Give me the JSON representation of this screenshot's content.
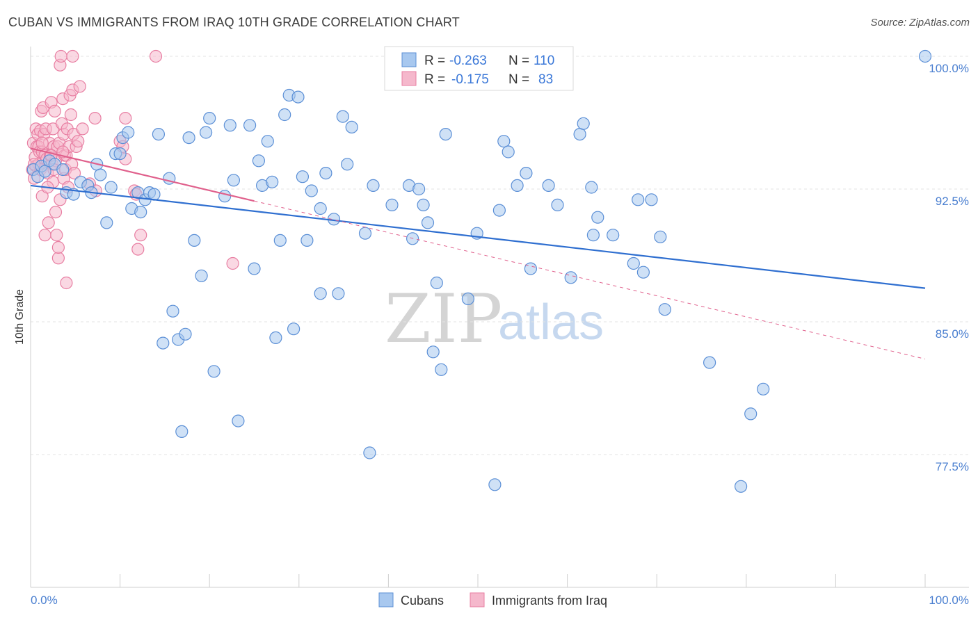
{
  "header": {
    "title": "CUBAN VS IMMIGRANTS FROM IRAQ 10TH GRADE CORRELATION CHART",
    "source": "Source: ZipAtlas.com"
  },
  "legend_top": {
    "row1": {
      "r_label": "R =",
      "r_value": "-0.263",
      "n_label": "N =",
      "n_value": "110"
    },
    "row2": {
      "r_label": "R =",
      "r_value": "-0.175",
      "n_label": "N =",
      "n_value": "83"
    }
  },
  "legend_bottom": {
    "series1": "Cubans",
    "series2": "Immigrants from Iraq"
  },
  "watermark": {
    "zip": "ZIP",
    "atlas": "atlas"
  },
  "colors": {
    "cubans_fill": "#a8c8ef",
    "cubans_stroke": "#5b8fd6",
    "cubans_line": "#2f6fd0",
    "iraq_fill": "#f5b8cc",
    "iraq_stroke": "#e87ea2",
    "iraq_line": "#e0608c",
    "tick_text": "#4a7fd0",
    "grid": "#e3e3e3"
  },
  "chart_data": {
    "type": "scatter",
    "xlabel": "",
    "ylabel": "10th Grade",
    "xlim": [
      0,
      100
    ],
    "ylim": [
      70.5,
      101.2
    ],
    "x_tick_labels": [
      "0.0%",
      "100.0%"
    ],
    "y_ticks": [
      {
        "value": 100.0,
        "label": "100.0%"
      },
      {
        "value": 92.5,
        "label": "92.5%"
      },
      {
        "value": 85.0,
        "label": "85.0%"
      },
      {
        "value": 77.5,
        "label": "77.5%"
      }
    ],
    "grid": true,
    "legend_position": "top-center",
    "series": [
      {
        "name": "Cubans",
        "R": -0.263,
        "N": 110,
        "trend": {
          "x0": 0,
          "y0": 92.7,
          "x1": 100,
          "y1": 86.9
        },
        "points": [
          [
            0.3,
            93.6
          ],
          [
            0.8,
            93.2
          ],
          [
            1.2,
            93.8
          ],
          [
            1.6,
            93.5
          ],
          [
            2.1,
            94.1
          ],
          [
            2.7,
            93.9
          ],
          [
            3.6,
            93.6
          ],
          [
            4.0,
            92.3
          ],
          [
            4.8,
            92.2
          ],
          [
            5.6,
            92.9
          ],
          [
            6.4,
            92.7
          ],
          [
            6.8,
            92.3
          ],
          [
            7.4,
            93.9
          ],
          [
            7.8,
            93.3
          ],
          [
            8.5,
            90.6
          ],
          [
            9.0,
            92.6
          ],
          [
            9.5,
            94.5
          ],
          [
            10.0,
            94.5
          ],
          [
            10.3,
            95.4
          ],
          [
            10.9,
            95.7
          ],
          [
            11.3,
            91.4
          ],
          [
            12.0,
            92.3
          ],
          [
            12.3,
            91.2
          ],
          [
            12.8,
            91.9
          ],
          [
            13.3,
            92.3
          ],
          [
            13.8,
            92.2
          ],
          [
            14.3,
            95.6
          ],
          [
            14.8,
            83.8
          ],
          [
            15.5,
            93.1
          ],
          [
            15.9,
            85.6
          ],
          [
            16.5,
            84.0
          ],
          [
            16.9,
            78.8
          ],
          [
            17.3,
            84.3
          ],
          [
            17.7,
            95.4
          ],
          [
            18.3,
            89.6
          ],
          [
            19.1,
            87.6
          ],
          [
            19.6,
            95.7
          ],
          [
            20.0,
            96.5
          ],
          [
            20.5,
            82.2
          ],
          [
            21.7,
            92.1
          ],
          [
            22.3,
            96.1
          ],
          [
            22.7,
            93.0
          ],
          [
            23.2,
            79.4
          ],
          [
            24.5,
            96.1
          ],
          [
            25.0,
            88.0
          ],
          [
            25.5,
            94.1
          ],
          [
            25.9,
            92.7
          ],
          [
            26.5,
            95.2
          ],
          [
            27.0,
            92.9
          ],
          [
            27.4,
            84.1
          ],
          [
            27.9,
            89.6
          ],
          [
            28.4,
            96.7
          ],
          [
            28.9,
            97.8
          ],
          [
            29.4,
            84.6
          ],
          [
            29.9,
            97.7
          ],
          [
            30.4,
            93.2
          ],
          [
            30.9,
            89.6
          ],
          [
            31.4,
            92.4
          ],
          [
            32.4,
            86.6
          ],
          [
            32.4,
            91.4
          ],
          [
            33.0,
            93.4
          ],
          [
            33.9,
            90.8
          ],
          [
            34.4,
            86.6
          ],
          [
            34.9,
            96.6
          ],
          [
            35.4,
            93.9
          ],
          [
            35.9,
            96.0
          ],
          [
            37.4,
            90.0
          ],
          [
            37.9,
            77.6
          ],
          [
            38.3,
            92.7
          ],
          [
            40.4,
            91.6
          ],
          [
            42.3,
            92.7
          ],
          [
            42.7,
            89.7
          ],
          [
            43.4,
            92.5
          ],
          [
            43.9,
            91.6
          ],
          [
            44.4,
            90.6
          ],
          [
            45.0,
            83.3
          ],
          [
            45.4,
            87.2
          ],
          [
            45.9,
            82.3
          ],
          [
            46.4,
            95.6
          ],
          [
            48.9,
            86.3
          ],
          [
            49.9,
            90.0
          ],
          [
            51.9,
            75.8
          ],
          [
            52.4,
            91.3
          ],
          [
            52.9,
            95.2
          ],
          [
            53.4,
            94.6
          ],
          [
            54.4,
            92.7
          ],
          [
            55.4,
            93.4
          ],
          [
            55.9,
            88.0
          ],
          [
            57.9,
            92.7
          ],
          [
            58.9,
            91.6
          ],
          [
            60.4,
            87.5
          ],
          [
            61.4,
            95.6
          ],
          [
            61.8,
            96.2
          ],
          [
            62.7,
            92.6
          ],
          [
            62.9,
            89.9
          ],
          [
            63.4,
            90.9
          ],
          [
            65.1,
            89.9
          ],
          [
            67.4,
            88.3
          ],
          [
            67.9,
            91.9
          ],
          [
            68.5,
            87.8
          ],
          [
            69.4,
            91.9
          ],
          [
            70.4,
            89.8
          ],
          [
            70.9,
            85.7
          ],
          [
            75.9,
            82.7
          ],
          [
            80.5,
            79.8
          ],
          [
            81.9,
            81.2
          ],
          [
            79.4,
            75.7
          ],
          [
            100.0,
            100.0
          ]
        ]
      },
      {
        "name": "Immigrants from Iraq",
        "R": -0.175,
        "N": 83,
        "trend": {
          "x0": 0,
          "y0": 94.8,
          "x1": 100,
          "y1": 82.9
        },
        "points": [
          [
            0.2,
            93.6
          ],
          [
            0.3,
            95.1
          ],
          [
            0.4,
            93.1
          ],
          [
            0.5,
            94.3
          ],
          [
            0.6,
            95.9
          ],
          [
            0.6,
            93.8
          ],
          [
            0.7,
            94.9
          ],
          [
            0.8,
            95.6
          ],
          [
            0.9,
            94.9
          ],
          [
            0.9,
            93.9
          ],
          [
            1.0,
            94.6
          ],
          [
            1.1,
            93.6
          ],
          [
            1.1,
            95.8
          ],
          [
            1.2,
            96.9
          ],
          [
            1.3,
            94.6
          ],
          [
            1.3,
            92.1
          ],
          [
            1.4,
            97.1
          ],
          [
            1.5,
            95.6
          ],
          [
            1.6,
            94.4
          ],
          [
            1.6,
            89.9
          ],
          [
            1.7,
            95.9
          ],
          [
            1.8,
            94.2
          ],
          [
            1.9,
            93.4
          ],
          [
            2.0,
            90.6
          ],
          [
            2.1,
            95.1
          ],
          [
            2.2,
            94.4
          ],
          [
            2.3,
            97.4
          ],
          [
            2.4,
            93.9
          ],
          [
            2.5,
            95.9
          ],
          [
            2.5,
            92.9
          ],
          [
            2.6,
            94.9
          ],
          [
            2.7,
            96.9
          ],
          [
            2.8,
            91.2
          ],
          [
            2.8,
            94.1
          ],
          [
            2.9,
            89.9
          ],
          [
            3.0,
            94.9
          ],
          [
            3.1,
            88.6
          ],
          [
            3.1,
            89.2
          ],
          [
            3.2,
            95.1
          ],
          [
            3.3,
            91.9
          ],
          [
            3.3,
            99.5
          ],
          [
            3.4,
            100.0
          ],
          [
            3.5,
            96.2
          ],
          [
            3.6,
            97.6
          ],
          [
            3.7,
            95.6
          ],
          [
            3.7,
            93.1
          ],
          [
            3.8,
            94.4
          ],
          [
            3.9,
            93.6
          ],
          [
            4.0,
            87.2
          ],
          [
            4.0,
            94.4
          ],
          [
            4.1,
            95.9
          ],
          [
            4.2,
            92.6
          ],
          [
            4.3,
            94.9
          ],
          [
            4.4,
            97.8
          ],
          [
            4.5,
            96.7
          ],
          [
            4.6,
            93.9
          ],
          [
            4.7,
            98.1
          ],
          [
            4.7,
            100.0
          ],
          [
            4.8,
            95.6
          ],
          [
            4.9,
            93.4
          ],
          [
            5.1,
            94.9
          ],
          [
            5.3,
            95.2
          ],
          [
            5.5,
            98.3
          ],
          [
            5.8,
            95.9
          ],
          [
            6.6,
            92.8
          ],
          [
            7.2,
            96.5
          ],
          [
            7.3,
            92.4
          ],
          [
            10.0,
            95.2
          ],
          [
            10.3,
            94.9
          ],
          [
            10.6,
            94.2
          ],
          [
            10.6,
            96.5
          ],
          [
            11.6,
            92.4
          ],
          [
            11.8,
            92.2
          ],
          [
            12.0,
            89.1
          ],
          [
            12.3,
            89.9
          ],
          [
            14.0,
            100.0
          ],
          [
            22.6,
            88.3
          ],
          [
            1.9,
            92.6
          ],
          [
            2.6,
            93.6
          ],
          [
            0.4,
            93.9
          ],
          [
            1.3,
            95.1
          ],
          [
            2.3,
            94.4
          ],
          [
            3.6,
            94.6
          ]
        ]
      }
    ]
  }
}
